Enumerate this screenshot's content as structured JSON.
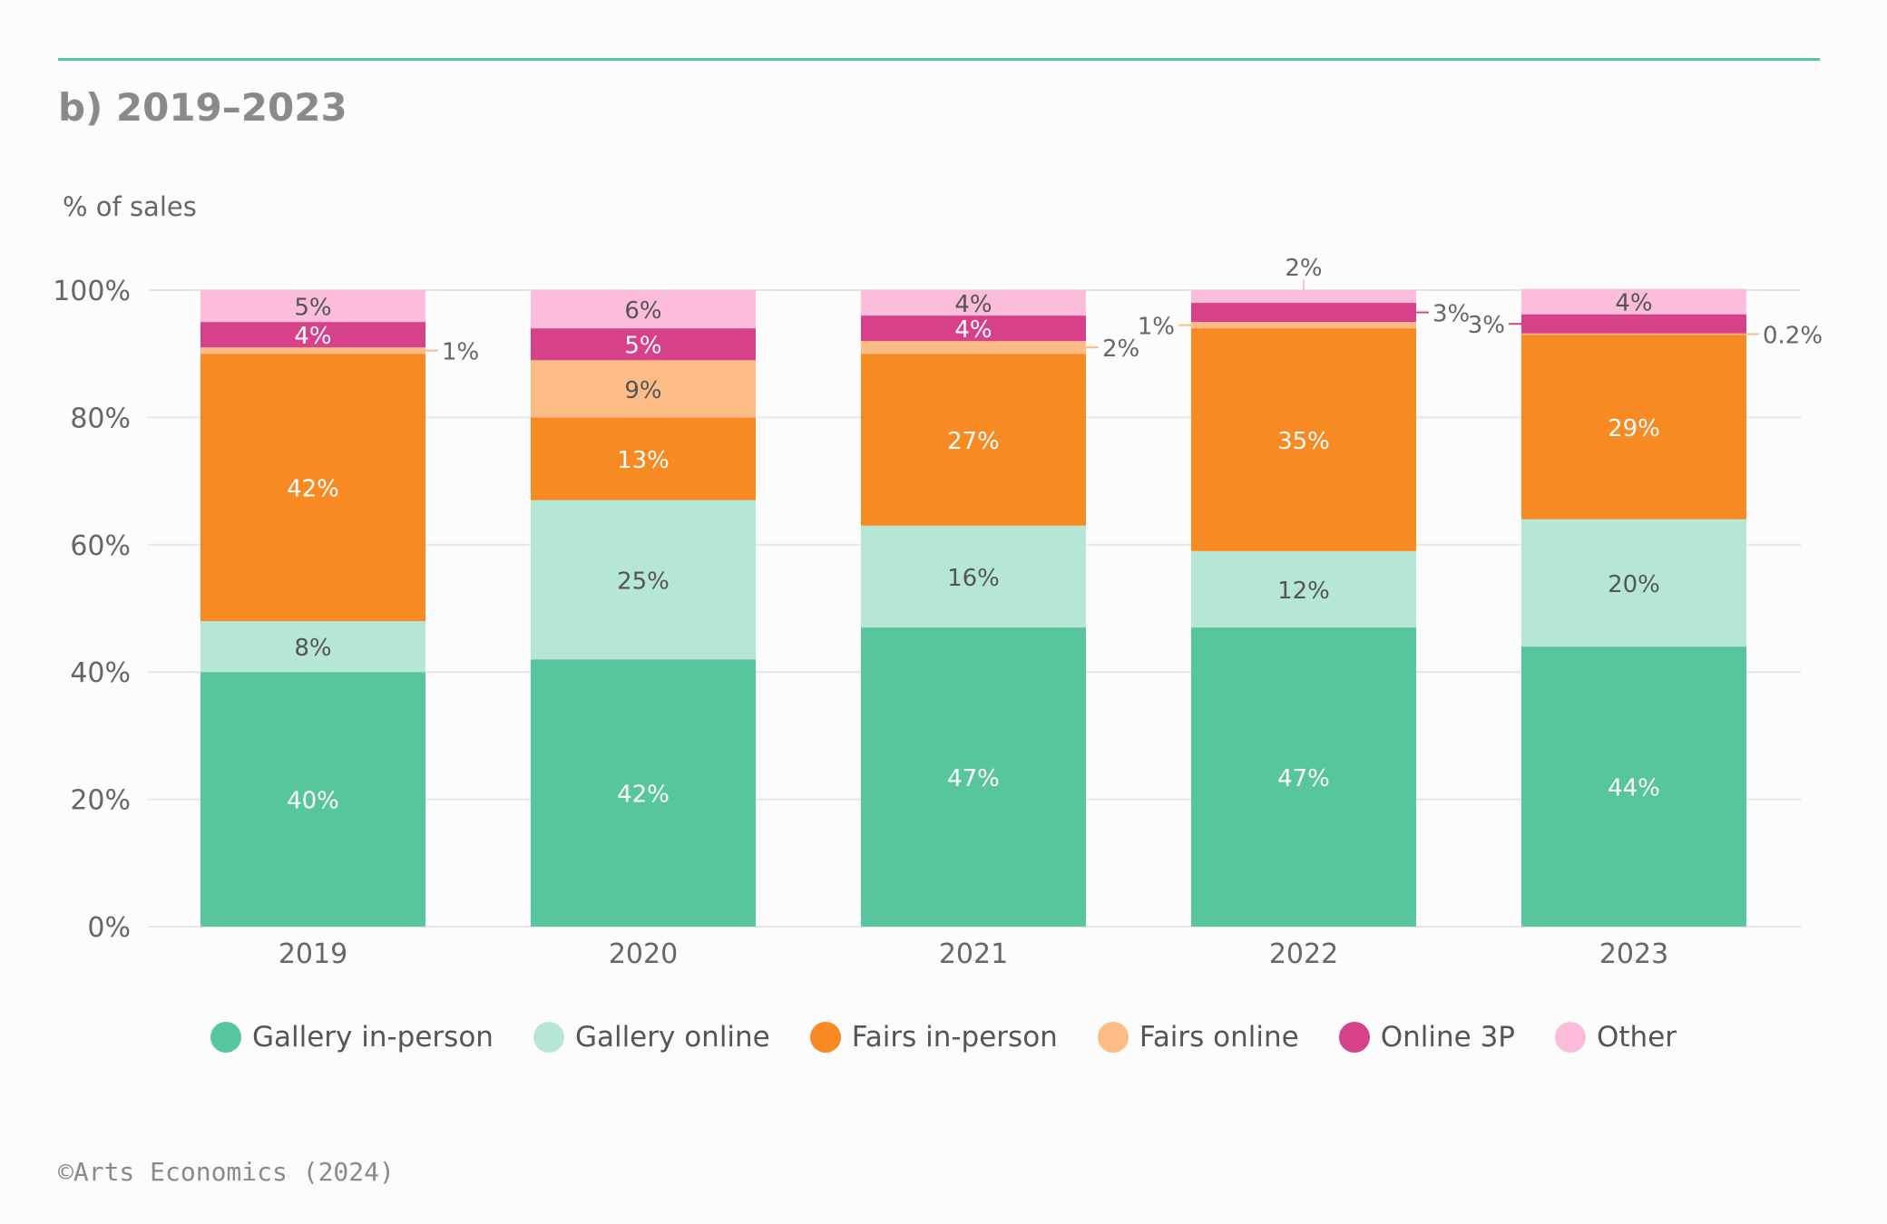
{
  "subtitle": "b) 2019–2023",
  "copyright": "©Arts Economics (2024)",
  "colors": {
    "gallery_in_person": "#57c69d",
    "gallery_online": "#b6e6d5",
    "fairs_in_person": "#f78a22",
    "fairs_online": "#fdbb85",
    "online_3p": "#d7418a",
    "other": "#fbbdd9",
    "grid": "#e6e6e6",
    "axis_text": "#666666",
    "top_rule": "#5cc39b"
  },
  "chart_data": {
    "type": "bar",
    "stacked": true,
    "title": "b) 2019–2023",
    "ylabel": "% of sales",
    "xlabel": "",
    "ylim": [
      0,
      100
    ],
    "yticks": [
      "0%",
      "20%",
      "40%",
      "60%",
      "80%",
      "100%"
    ],
    "grid": true,
    "legend_position": "bottom-center",
    "categories": [
      "2019",
      "2020",
      "2021",
      "2022",
      "2023"
    ],
    "series": [
      {
        "name": "Gallery in-person",
        "key": "gallery_in_person",
        "values": [
          40,
          42,
          47,
          47,
          44
        ],
        "labels": [
          "40%",
          "42%",
          "47%",
          "47%",
          "44%"
        ],
        "label_color": "#ffffff"
      },
      {
        "name": "Gallery online",
        "key": "gallery_online",
        "values": [
          8,
          25,
          16,
          12,
          20
        ],
        "labels": [
          "8%",
          "25%",
          "16%",
          "12%",
          "20%"
        ],
        "label_color": "#555555"
      },
      {
        "name": "Fairs in-person",
        "key": "fairs_in_person",
        "values": [
          42,
          13,
          27,
          35,
          29
        ],
        "labels": [
          "42%",
          "13%",
          "27%",
          "35%",
          "29%"
        ],
        "label_color": "#ffffff"
      },
      {
        "name": "Fairs online",
        "key": "fairs_online",
        "values": [
          1,
          9,
          2,
          1,
          0.2
        ],
        "labels": [
          "1%",
          "9%",
          "2%",
          "1%",
          "0.2%"
        ],
        "label_color": "#555555"
      },
      {
        "name": "Online 3P",
        "key": "online_3p",
        "values": [
          4,
          5,
          4,
          3,
          3
        ],
        "labels": [
          "4%",
          "5%",
          "4%",
          "3%",
          "3%"
        ],
        "label_color": "#ffffff"
      },
      {
        "name": "Other",
        "key": "other",
        "values": [
          5,
          6,
          4,
          2,
          4
        ],
        "labels": [
          "5%",
          "6%",
          "4%",
          "2%",
          "4%"
        ],
        "label_color": "#555555"
      }
    ],
    "external_labels": [
      {
        "category": "2019",
        "series": "Fairs online",
        "side": "right"
      },
      {
        "category": "2021",
        "series": "Fairs online",
        "side": "right"
      },
      {
        "category": "2022",
        "series": "Fairs online",
        "side": "left"
      },
      {
        "category": "2022",
        "series": "Online 3P",
        "side": "right"
      },
      {
        "category": "2022",
        "series": "Other",
        "side": "top"
      },
      {
        "category": "2023",
        "series": "Online 3P",
        "side": "left"
      },
      {
        "category": "2023",
        "series": "Fairs online",
        "side": "right"
      }
    ]
  }
}
